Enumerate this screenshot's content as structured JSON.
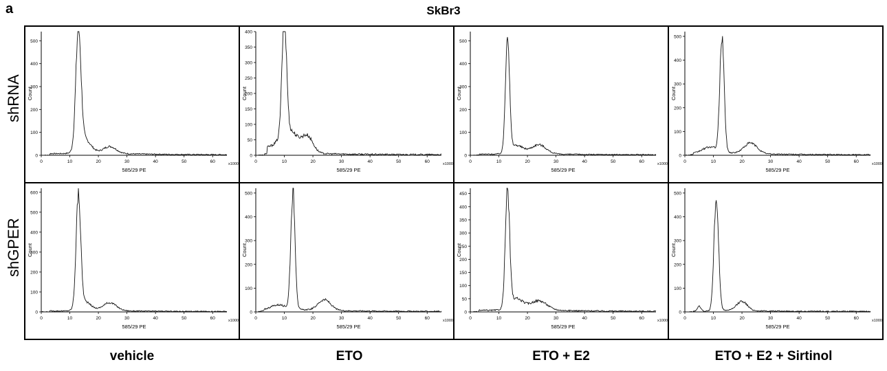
{
  "figure": {
    "panel_letter": "a",
    "title": "SkBr3",
    "row_labels": [
      "shRNA",
      "shGPER"
    ],
    "col_labels": [
      "vehicle",
      "ETO",
      "ETO  +  E2",
      "ETO  + E2 + Sirtinol"
    ]
  },
  "chart_data": [
    {
      "type": "line",
      "row": 0,
      "col": 0,
      "xlabel": "585/29 PE",
      "ylabel": "Count",
      "xunit": "x1000",
      "xlim": [
        0,
        65
      ],
      "xticks": [
        0,
        10,
        20,
        30,
        40,
        50,
        60
      ],
      "ylim": [
        0,
        540
      ],
      "yticks": [
        0,
        100,
        200,
        300,
        400,
        500
      ],
      "peaks": [
        {
          "x": 13,
          "y": 510,
          "w": 0.9
        },
        {
          "x": 24,
          "y": 30,
          "w": 2.2
        }
      ],
      "shoulder": {
        "x": 15,
        "y": 60,
        "w": 2.2
      },
      "floor": 12,
      "tail_decay": 6
    },
    {
      "type": "line",
      "row": 0,
      "col": 1,
      "xlabel": "585/29 PE",
      "ylabel": "Count",
      "xunit": "x1000",
      "xlim": [
        0,
        65
      ],
      "xticks": [
        0,
        10,
        20,
        30,
        40,
        50,
        60
      ],
      "ylim": [
        0,
        400
      ],
      "yticks": [
        0,
        50,
        100,
        150,
        200,
        250,
        300,
        350,
        400
      ],
      "peaks": [
        {
          "x": 10,
          "y": 375,
          "w": 0.8
        },
        {
          "x": 18,
          "y": 55,
          "w": 2.0
        }
      ],
      "shoulder": {
        "x": 12,
        "y": 70,
        "w": 2.5
      },
      "floor": 8,
      "low_start": 4,
      "low_level": 35,
      "tail_decay": 5
    },
    {
      "type": "line",
      "row": 0,
      "col": 2,
      "xlabel": "585/29 PE",
      "ylabel": "Count",
      "xunit": "x1000",
      "xlim": [
        0,
        65
      ],
      "xticks": [
        0,
        10,
        20,
        30,
        40,
        50,
        60
      ],
      "ylim": [
        0,
        540
      ],
      "yticks": [
        0,
        100,
        200,
        300,
        400,
        500
      ],
      "peaks": [
        {
          "x": 13,
          "y": 515,
          "w": 0.7
        },
        {
          "x": 24,
          "y": 40,
          "w": 2.5
        }
      ],
      "shoulder": {
        "x": 16,
        "y": 35,
        "w": 2.5
      },
      "floor": 8,
      "tail_decay": 6
    },
    {
      "type": "line",
      "row": 0,
      "col": 3,
      "xlabel": "585/29 PE",
      "ylabel": "Count",
      "xunit": "x1000",
      "xlim": [
        0,
        65
      ],
      "xticks": [
        0,
        10,
        20,
        30,
        40,
        50,
        60
      ],
      "ylim": [
        0,
        520
      ],
      "yticks": [
        0,
        100,
        200,
        300,
        400,
        500
      ],
      "peaks": [
        {
          "x": 13,
          "y": 485,
          "w": 0.75
        },
        {
          "x": 23,
          "y": 45,
          "w": 2.3
        }
      ],
      "shoulder": {
        "x": 9,
        "y": 30,
        "w": 3.0
      },
      "floor": 8,
      "tail_decay": 6
    },
    {
      "type": "line",
      "row": 1,
      "col": 0,
      "xlabel": "585/29 PE",
      "ylabel": "Count",
      "xunit": "x1000",
      "xlim": [
        0,
        65
      ],
      "xticks": [
        0,
        10,
        20,
        30,
        40,
        50,
        60
      ],
      "ylim": [
        0,
        620
      ],
      "yticks": [
        0,
        100,
        200,
        300,
        400,
        500,
        600
      ],
      "peaks": [
        {
          "x": 13,
          "y": 560,
          "w": 0.8
        },
        {
          "x": 24,
          "y": 40,
          "w": 2.3
        }
      ],
      "shoulder": {
        "x": 15,
        "y": 45,
        "w": 2.2
      },
      "floor": 8,
      "tail_decay": 6
    },
    {
      "type": "line",
      "row": 1,
      "col": 1,
      "xlabel": "585/29 PE",
      "ylabel": "Count",
      "xunit": "x1000",
      "xlim": [
        0,
        65
      ],
      "xticks": [
        0,
        10,
        20,
        30,
        40,
        50,
        60
      ],
      "ylim": [
        0,
        520
      ],
      "yticks": [
        0,
        100,
        200,
        300,
        400,
        500
      ],
      "peaks": [
        {
          "x": 13,
          "y": 495,
          "w": 0.75
        },
        {
          "x": 24,
          "y": 45,
          "w": 2.2
        }
      ],
      "shoulder": {
        "x": 8,
        "y": 25,
        "w": 3.0
      },
      "floor": 8,
      "tail_decay": 6
    },
    {
      "type": "line",
      "row": 1,
      "col": 2,
      "xlabel": "585/29 PE",
      "ylabel": "Count",
      "xunit": "x1000",
      "xlim": [
        0,
        65
      ],
      "xticks": [
        0,
        10,
        20,
        30,
        40,
        50,
        60
      ],
      "ylim": [
        0,
        470
      ],
      "yticks": [
        0,
        50,
        100,
        150,
        200,
        250,
        300,
        350,
        400,
        450
      ],
      "peaks": [
        {
          "x": 13,
          "y": 440,
          "w": 0.75
        },
        {
          "x": 24,
          "y": 35,
          "w": 2.8
        }
      ],
      "shoulder": {
        "x": 16,
        "y": 40,
        "w": 2.5
      },
      "floor": 10,
      "tail_decay": 6
    },
    {
      "type": "line",
      "row": 1,
      "col": 3,
      "xlabel": "585/29 PE",
      "ylabel": "Count",
      "xunit": "x1000",
      "xlim": [
        0,
        65
      ],
      "xticks": [
        0,
        10,
        20,
        30,
        40,
        50,
        60
      ],
      "ylim": [
        0,
        520
      ],
      "yticks": [
        0,
        100,
        200,
        300,
        400,
        500
      ],
      "peaks": [
        {
          "x": 11,
          "y": 475,
          "w": 0.8
        },
        {
          "x": 20,
          "y": 40,
          "w": 1.8
        }
      ],
      "shoulder": {
        "x": 5,
        "y": 20,
        "w": 0.6
      },
      "floor": 6,
      "tail_decay": 5
    }
  ]
}
